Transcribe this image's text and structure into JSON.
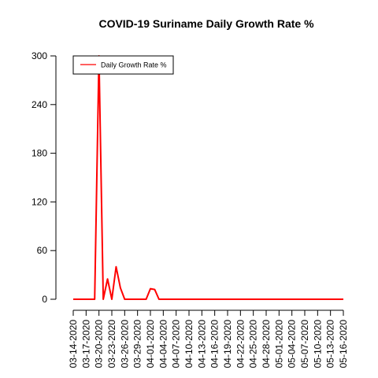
{
  "chart_data": {
    "type": "line",
    "title": "COVID-19 Suriname Daily Growth Rate %",
    "xlabel": "",
    "ylabel": "",
    "x": [
      "03-14-2020",
      "03-15-2020",
      "03-16-2020",
      "03-17-2020",
      "03-18-2020",
      "03-19-2020",
      "03-20-2020",
      "03-21-2020",
      "03-22-2020",
      "03-23-2020",
      "03-24-2020",
      "03-25-2020",
      "03-26-2020",
      "03-27-2020",
      "03-28-2020",
      "03-29-2020",
      "03-30-2020",
      "03-31-2020",
      "04-01-2020",
      "04-02-2020",
      "04-03-2020",
      "04-04-2020",
      "04-05-2020",
      "04-06-2020",
      "04-07-2020",
      "04-08-2020",
      "04-09-2020",
      "04-10-2020",
      "04-11-2020",
      "04-12-2020",
      "04-13-2020",
      "04-14-2020",
      "04-15-2020",
      "04-16-2020",
      "04-17-2020",
      "04-18-2020",
      "04-19-2020",
      "04-20-2020",
      "04-21-2020",
      "04-22-2020",
      "04-23-2020",
      "04-24-2020",
      "04-25-2020",
      "04-26-2020",
      "04-27-2020",
      "04-28-2020",
      "04-29-2020",
      "04-30-2020",
      "05-01-2020",
      "05-02-2020",
      "05-03-2020",
      "05-04-2020",
      "05-05-2020",
      "05-06-2020",
      "05-07-2020",
      "05-08-2020",
      "05-09-2020",
      "05-10-2020",
      "05-11-2020",
      "05-12-2020",
      "05-13-2020",
      "05-14-2020",
      "05-15-2020",
      "05-16-2020"
    ],
    "xtick_labels": [
      "03-14-2020",
      "03-17-2020",
      "03-20-2020",
      "03-23-2020",
      "03-26-2020",
      "03-29-2020",
      "04-01-2020",
      "04-04-2020",
      "04-07-2020",
      "04-10-2020",
      "04-13-2020",
      "04-16-2020",
      "04-19-2020",
      "04-22-2020",
      "04-25-2020",
      "04-28-2020",
      "05-01-2020",
      "05-04-2020",
      "05-07-2020",
      "05-10-2020",
      "05-13-2020",
      "05-16-2020"
    ],
    "series": [
      {
        "name": "Daily Growth Rate %",
        "color": "#ff0000",
        "values": [
          0,
          0,
          0,
          0,
          0,
          0,
          300,
          0,
          25,
          0,
          40,
          14,
          0,
          0,
          0,
          0,
          0,
          0,
          13,
          12,
          0,
          0,
          0,
          0,
          0,
          0,
          0,
          0,
          0,
          0,
          0,
          0,
          0,
          0,
          0,
          0,
          0,
          0,
          0,
          0,
          0,
          0,
          0,
          0,
          0,
          0,
          0,
          0,
          0,
          0,
          0,
          0,
          0,
          0,
          0,
          0,
          0,
          0,
          0,
          0,
          0,
          0,
          0,
          0
        ]
      }
    ],
    "yticks": [
      0,
      60,
      120,
      180,
      240,
      300
    ],
    "ytick_labels": [
      "0",
      "60",
      "120",
      "180",
      "240",
      "300"
    ],
    "ylim": [
      0,
      300
    ],
    "grid": false,
    "legend_position": "top-left"
  }
}
